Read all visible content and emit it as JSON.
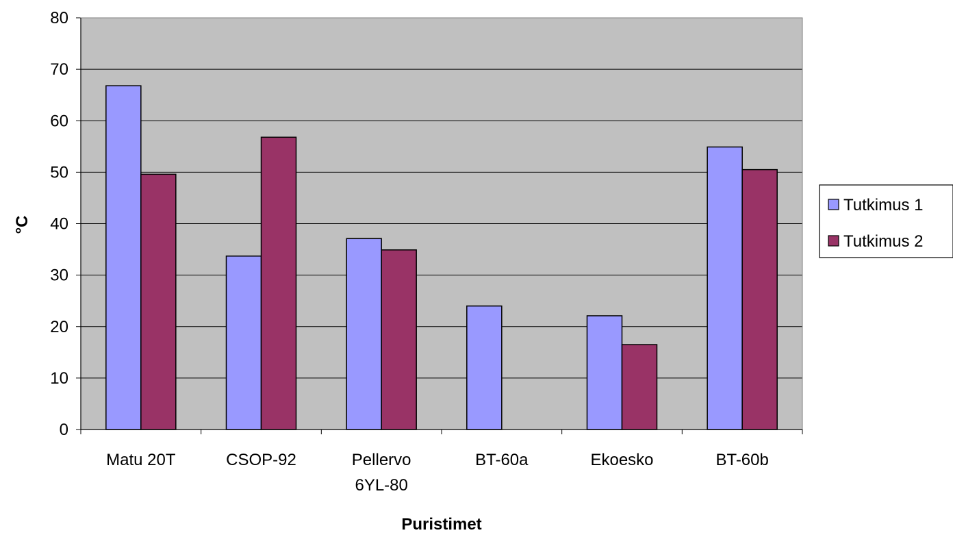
{
  "chart_data": {
    "type": "bar",
    "title": "",
    "xlabel": "Puristimet",
    "ylabel": "°C",
    "ylim": [
      0,
      80
    ],
    "yticks": [
      0,
      10,
      20,
      30,
      40,
      50,
      60,
      70,
      80
    ],
    "categories": [
      [
        "Matu 20T"
      ],
      [
        "CSOP-92"
      ],
      [
        "Pellervo",
        "6YL-80"
      ],
      [
        "BT-60a"
      ],
      [
        "Ekoesko"
      ],
      [
        "BT-60b"
      ]
    ],
    "series": [
      {
        "name": "Tutkimus 1",
        "color": "#9999ff",
        "values": [
          66.8,
          33.7,
          37.1,
          24.0,
          22.1,
          54.9
        ]
      },
      {
        "name": "Tutkimus 2",
        "color": "#993366",
        "values": [
          49.6,
          56.8,
          34.9,
          null,
          16.5,
          50.5
        ]
      }
    ],
    "plot_background": "#c0c0c0",
    "grid": true,
    "legend_position": "right"
  }
}
